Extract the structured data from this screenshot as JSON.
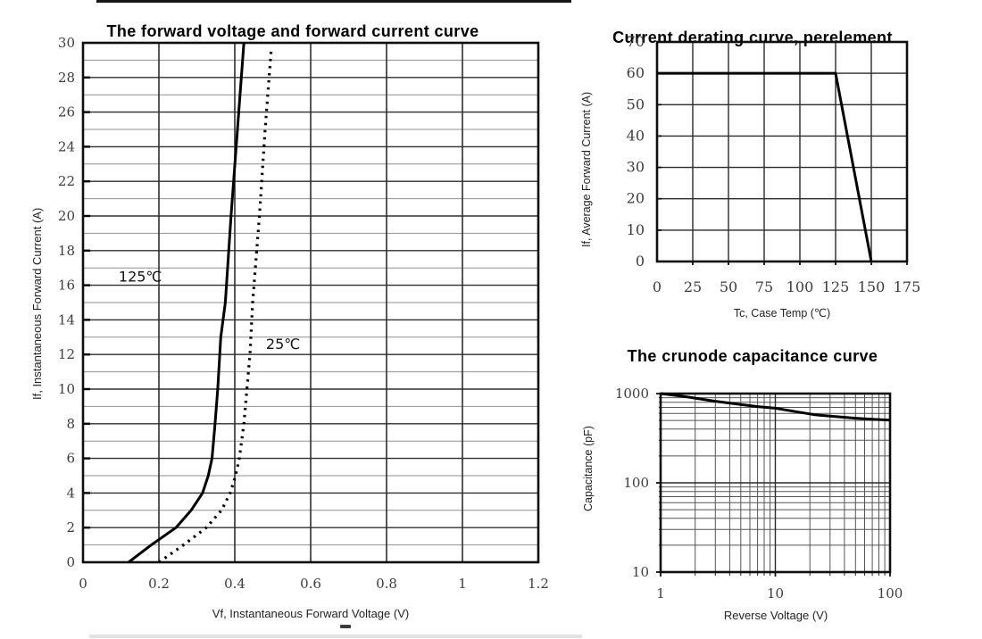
{
  "chart_data": [
    {
      "id": "forward-voltage-current",
      "type": "line",
      "title": "The forward voltage and forward current curve",
      "xlabel": "Vf, Instantaneous Forward Voltage (V)",
      "ylabel": "If, Instantaneous Forward Current (A)",
      "x_scale": "linear",
      "y_scale": "linear",
      "xlim": [
        0,
        1.2
      ],
      "ylim": [
        0,
        30
      ],
      "x_ticks": [
        0,
        0.2,
        0.4,
        0.6,
        0.8,
        1,
        1.2
      ],
      "x_tick_labels": [
        "0",
        "0.2",
        "0.4",
        "0.6",
        "0.8",
        "1",
        "1.2"
      ],
      "y_ticks": [
        0,
        2,
        4,
        6,
        8,
        10,
        12,
        14,
        16,
        18,
        20,
        22,
        24,
        26,
        28,
        30
      ],
      "y_grid_step": 1,
      "grid": "on",
      "legend": "inline-annotations",
      "series": [
        {
          "name": "125℃",
          "line": "solid",
          "points": [
            [
              0.12,
              0
            ],
            [
              0.18,
              1
            ],
            [
              0.245,
              2
            ],
            [
              0.285,
              3
            ],
            [
              0.315,
              4
            ],
            [
              0.33,
              5
            ],
            [
              0.34,
              6
            ],
            [
              0.348,
              8
            ],
            [
              0.355,
              10
            ],
            [
              0.363,
              13
            ],
            [
              0.375,
              15
            ],
            [
              0.39,
              20
            ],
            [
              0.407,
              25
            ],
            [
              0.424,
              30
            ]
          ]
        },
        {
          "name": "25℃",
          "line": "dashed",
          "points": [
            [
              0.2,
              0
            ],
            [
              0.265,
              1
            ],
            [
              0.325,
              2
            ],
            [
              0.365,
              3
            ],
            [
              0.388,
              4
            ],
            [
              0.402,
              5
            ],
            [
              0.412,
              6
            ],
            [
              0.424,
              8
            ],
            [
              0.432,
              10
            ],
            [
              0.44,
              12
            ],
            [
              0.447,
              15
            ],
            [
              0.465,
              20
            ],
            [
              0.48,
              25
            ],
            [
              0.496,
              29.6
            ]
          ]
        }
      ],
      "annotations": [
        {
          "text": "125℃",
          "at": [
            0.094,
            16.5
          ]
        },
        {
          "text": "25℃",
          "at": [
            0.482,
            12.6
          ]
        }
      ]
    },
    {
      "id": "current-derating",
      "type": "line",
      "title": "Current derating curve, perelement",
      "xlabel": "Tc, Case Temp (℃)",
      "ylabel": "If, Average Forward Current (A)",
      "x_scale": "linear",
      "y_scale": "linear",
      "xlim": [
        0,
        175
      ],
      "ylim": [
        0,
        70
      ],
      "x_ticks": [
        0,
        25,
        50,
        75,
        100,
        125,
        150,
        175
      ],
      "y_ticks": [
        0,
        10,
        20,
        30,
        40,
        50,
        60,
        70
      ],
      "grid": "on",
      "series": [
        {
          "name": "derating",
          "line": "solid",
          "points": [
            [
              0,
              60
            ],
            [
              125,
              60
            ],
            [
              150,
              0
            ]
          ]
        }
      ]
    },
    {
      "id": "crunode-capacitance",
      "type": "line",
      "title": "The crunode capacitance curve",
      "xlabel": "Reverse Voltage (V)",
      "ylabel": "Capacitance (pF)",
      "x_scale": "log",
      "y_scale": "log",
      "xlim": [
        1,
        100
      ],
      "ylim": [
        10,
        1000
      ],
      "x_ticks": [
        1,
        10,
        100
      ],
      "x_tick_labels": [
        "1",
        "10",
        "100"
      ],
      "y_ticks": [
        10,
        100,
        1000
      ],
      "y_tick_labels": [
        "10",
        "100",
        "1000"
      ],
      "grid": "on",
      "series": [
        {
          "name": "capacitance",
          "line": "solid",
          "points": [
            [
              1,
              1000
            ],
            [
              1.5,
              940
            ],
            [
              2,
              890
            ],
            [
              3,
              820
            ],
            [
              5,
              755
            ],
            [
              7,
              715
            ],
            [
              10,
              685
            ],
            [
              15,
              628
            ],
            [
              22,
              580
            ],
            [
              30,
              558
            ],
            [
              50,
              530
            ],
            [
              70,
              516
            ],
            [
              100,
              505
            ]
          ]
        }
      ]
    }
  ]
}
